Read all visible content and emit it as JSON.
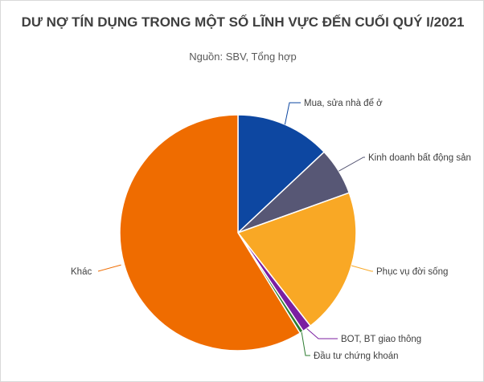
{
  "chart_data": {
    "type": "pie",
    "title": "DƯ NỢ TÍN DỤNG TRONG MỘT SỐ LĨNH VỰC ĐẾN CUỐI QUÝ I/2021",
    "subtitle": "Nguồn: SBV, Tổng hợp",
    "categories": [
      "Mua, sửa nhà để ở",
      "Kinh doanh bất động sản",
      "Phục vụ đời sống",
      "BOT, BT giao thông",
      "Đầu tư chứng khoán",
      "Khác"
    ],
    "values": [
      13.0,
      6.5,
      20.0,
      1.2,
      0.5,
      58.8
    ],
    "colors": [
      "#0d47a1",
      "#575775",
      "#f9a825",
      "#7b1fa2",
      "#2e7d32",
      "#ef6c00"
    ],
    "legend": "none"
  }
}
